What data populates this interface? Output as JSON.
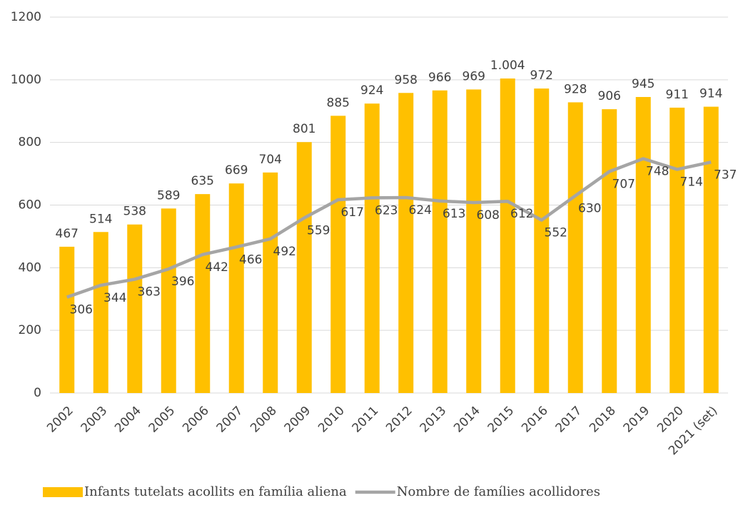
{
  "chart_data": {
    "type": "combo",
    "categories": [
      "2002",
      "2003",
      "2004",
      "2005",
      "2006",
      "2007",
      "2008",
      "2009",
      "2010",
      "2011",
      "2012",
      "2013",
      "2014",
      "2015",
      "2016",
      "2017",
      "2018",
      "2019",
      "2020",
      "2021 (set)"
    ],
    "series": [
      {
        "name": "Infants tutelats acollits en família aliena",
        "type": "bar",
        "color": "#FFC000",
        "values": [
          467,
          514,
          538,
          589,
          635,
          669,
          704,
          801,
          885,
          924,
          958,
          966,
          969,
          1004,
          972,
          928,
          906,
          945,
          911,
          914
        ],
        "value_labels": [
          "467",
          "514",
          "538",
          "589",
          "635",
          "669",
          "704",
          "801",
          "885",
          "924",
          "958",
          "966",
          "969",
          "1.004",
          "972",
          "928",
          "906",
          "945",
          "911",
          "914"
        ]
      },
      {
        "name": "Nombre de famílies acollidores",
        "type": "line",
        "color": "#A5A5A5",
        "values": [
          306,
          344,
          363,
          396,
          442,
          466,
          492,
          559,
          617,
          623,
          624,
          613,
          608,
          612,
          552,
          630,
          707,
          748,
          714,
          737
        ]
      }
    ],
    "ylim": [
      0,
      1200
    ],
    "yticks": [
      0,
      200,
      400,
      600,
      800,
      1000,
      1200
    ],
    "grid": true,
    "legend": "bottom"
  }
}
